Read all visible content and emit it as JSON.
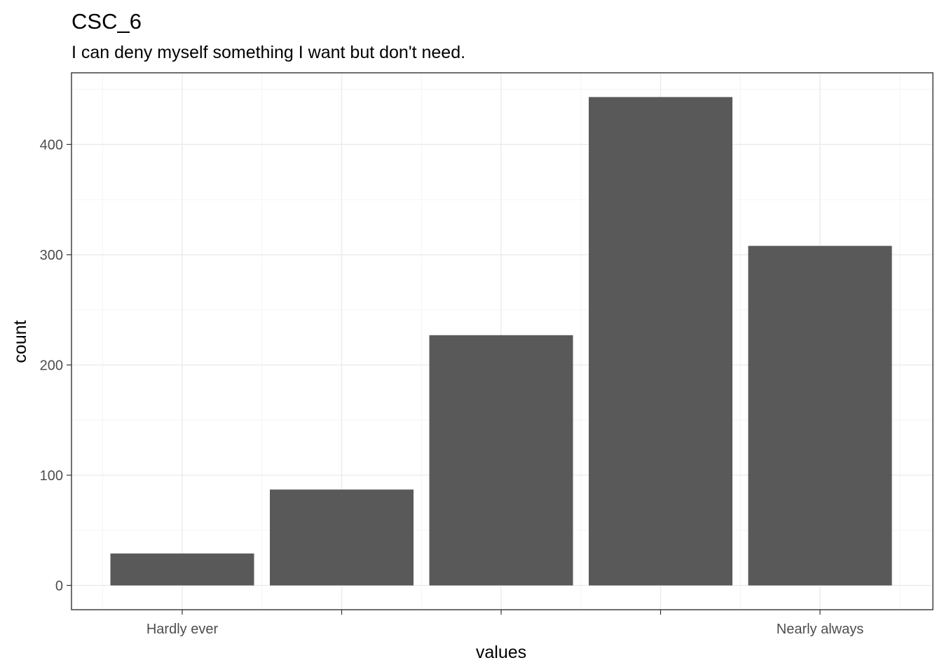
{
  "chart_data": {
    "type": "bar",
    "title": "CSC_6",
    "subtitle": "I can deny myself something I want but don't need.",
    "xlabel": "values",
    "ylabel": "count",
    "categories": [
      "Hardly ever",
      "",
      "",
      "",
      "Nearly always"
    ],
    "values": [
      29,
      87,
      227,
      443,
      308
    ],
    "ylim": [
      -22,
      465
    ],
    "yticks": [
      0,
      100,
      200,
      300,
      400
    ],
    "grid": true,
    "bar_color": "#595959"
  }
}
